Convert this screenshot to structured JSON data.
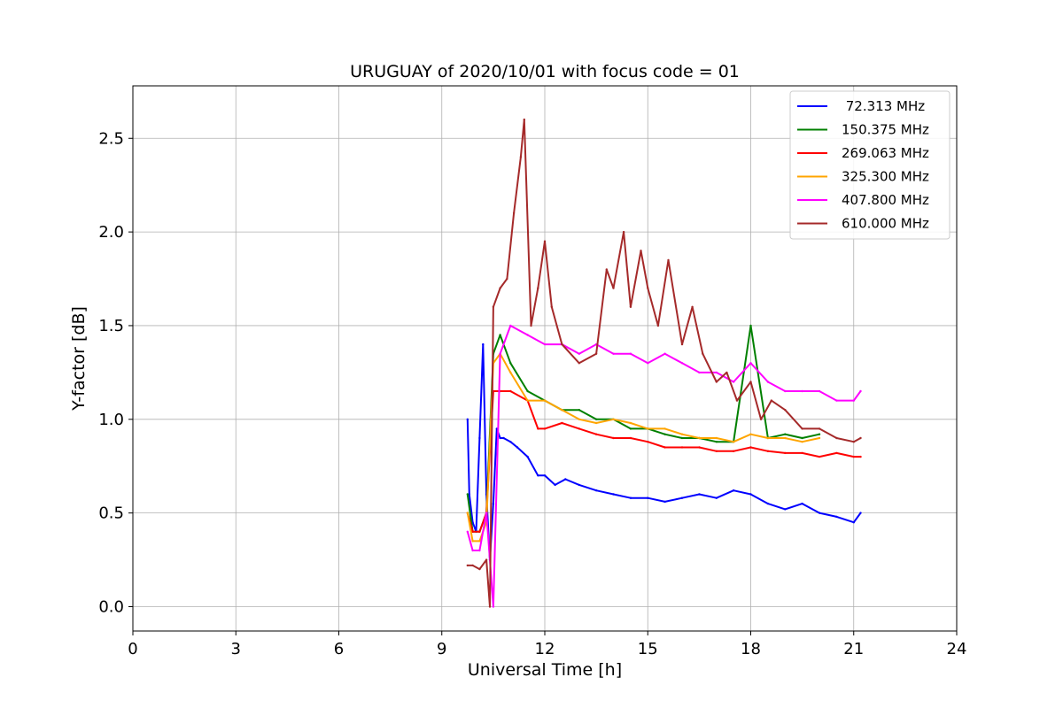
{
  "chart_data": {
    "type": "line",
    "title": "URUGUAY of 2020/10/01 with focus code = 01",
    "xlabel": "Universal Time [h]",
    "ylabel": "Y-factor [dB]",
    "xlim": [
      0,
      24
    ],
    "ylim": [
      -0.13,
      2.78
    ],
    "xticks": [
      0,
      3,
      6,
      9,
      12,
      15,
      18,
      21,
      24
    ],
    "xtick_labels": [
      "0",
      "3",
      "6",
      "9",
      "12",
      "15",
      "18",
      "21",
      "24"
    ],
    "yticks": [
      0.0,
      0.5,
      1.0,
      1.5,
      2.0,
      2.5
    ],
    "ytick_labels": [
      "0.0",
      "0.5",
      "1.0",
      "1.5",
      "2.0",
      "2.5"
    ],
    "grid": true,
    "legend_position": "top-right",
    "series": [
      {
        "name": " 72.313 MHz",
        "color": "#0000ff",
        "x": [
          9.75,
          9.8,
          9.9,
          10.0,
          10.1,
          10.2,
          10.3,
          10.4,
          10.5,
          10.6,
          10.7,
          10.8,
          11.0,
          11.2,
          11.5,
          11.8,
          12.0,
          12.3,
          12.6,
          13.0,
          13.5,
          14.0,
          14.5,
          15.0,
          15.5,
          16.0,
          16.5,
          17.0,
          17.5,
          18.0,
          18.5,
          19.0,
          19.5,
          20.0,
          20.5,
          21.0,
          21.2
        ],
        "values": [
          1.0,
          0.6,
          0.45,
          0.4,
          0.9,
          1.4,
          0.6,
          0.25,
          0.55,
          0.95,
          0.9,
          0.9,
          0.88,
          0.85,
          0.8,
          0.7,
          0.7,
          0.65,
          0.68,
          0.65,
          0.62,
          0.6,
          0.58,
          0.58,
          0.56,
          0.58,
          0.6,
          0.58,
          0.62,
          0.6,
          0.55,
          0.52,
          0.55,
          0.5,
          0.48,
          0.45,
          0.5
        ]
      },
      {
        "name": "150.375 MHz",
        "color": "#008000",
        "x": [
          9.75,
          9.9,
          10.1,
          10.3,
          10.5,
          10.7,
          11.0,
          11.5,
          12.0,
          12.5,
          13.0,
          13.5,
          14.0,
          14.5,
          15.0,
          15.5,
          16.0,
          16.5,
          17.0,
          17.5,
          18.0,
          18.5,
          19.0,
          19.5,
          20.0
        ],
        "values": [
          0.6,
          0.4,
          0.4,
          0.5,
          1.35,
          1.45,
          1.3,
          1.15,
          1.1,
          1.05,
          1.05,
          1.0,
          1.0,
          0.95,
          0.95,
          0.92,
          0.9,
          0.9,
          0.88,
          0.88,
          1.5,
          0.9,
          0.92,
          0.9,
          0.92
        ]
      },
      {
        "name": "269.063 MHz",
        "color": "#ff0000",
        "x": [
          9.75,
          9.9,
          10.1,
          10.3,
          10.5,
          10.7,
          11.0,
          11.5,
          11.8,
          12.0,
          12.5,
          13.0,
          13.5,
          14.0,
          14.5,
          15.0,
          15.5,
          16.0,
          16.5,
          17.0,
          17.5,
          18.0,
          18.5,
          19.0,
          19.5,
          20.0,
          20.5,
          21.0,
          21.2
        ],
        "values": [
          0.5,
          0.4,
          0.4,
          0.5,
          1.15,
          1.15,
          1.15,
          1.1,
          0.95,
          0.95,
          0.98,
          0.95,
          0.92,
          0.9,
          0.9,
          0.88,
          0.85,
          0.85,
          0.85,
          0.83,
          0.83,
          0.85,
          0.83,
          0.82,
          0.82,
          0.8,
          0.82,
          0.8,
          0.8
        ]
      },
      {
        "name": "325.300 MHz",
        "color": "#ffa500",
        "x": [
          9.75,
          9.9,
          10.1,
          10.3,
          10.5,
          10.7,
          11.0,
          11.5,
          12.0,
          12.5,
          13.0,
          13.5,
          14.0,
          14.5,
          15.0,
          15.5,
          16.0,
          16.5,
          17.0,
          17.5,
          18.0,
          18.5,
          19.0,
          19.5,
          20.0
        ],
        "values": [
          0.5,
          0.35,
          0.35,
          0.45,
          1.3,
          1.35,
          1.25,
          1.1,
          1.1,
          1.05,
          1.0,
          0.98,
          1.0,
          0.98,
          0.95,
          0.95,
          0.92,
          0.9,
          0.9,
          0.88,
          0.92,
          0.9,
          0.9,
          0.88,
          0.9
        ]
      },
      {
        "name": "407.800 MHz",
        "color": "#ff00ff",
        "x": [
          9.75,
          9.9,
          10.1,
          10.3,
          10.5,
          10.7,
          11.0,
          11.5,
          12.0,
          12.5,
          13.0,
          13.5,
          14.0,
          14.5,
          15.0,
          15.5,
          16.0,
          16.5,
          17.0,
          17.5,
          18.0,
          18.5,
          19.0,
          19.5,
          20.0,
          20.5,
          21.0,
          21.2
        ],
        "values": [
          0.4,
          0.3,
          0.3,
          0.5,
          0.0,
          1.35,
          1.5,
          1.45,
          1.4,
          1.4,
          1.35,
          1.4,
          1.35,
          1.35,
          1.3,
          1.35,
          1.3,
          1.25,
          1.25,
          1.2,
          1.3,
          1.2,
          1.15,
          1.15,
          1.15,
          1.1,
          1.1,
          1.15
        ]
      },
      {
        "name": "610.000 MHz",
        "color": "#a52a2a",
        "x": [
          9.75,
          9.9,
          10.1,
          10.3,
          10.4,
          10.5,
          10.7,
          10.9,
          11.1,
          11.3,
          11.4,
          11.6,
          11.8,
          12.0,
          12.2,
          12.5,
          13.0,
          13.5,
          13.8,
          14.0,
          14.3,
          14.5,
          14.8,
          15.0,
          15.3,
          15.6,
          16.0,
          16.3,
          16.6,
          17.0,
          17.3,
          17.6,
          18.0,
          18.3,
          18.6,
          19.0,
          19.5,
          20.0,
          20.5,
          21.0,
          21.2
        ],
        "values": [
          0.22,
          0.22,
          0.2,
          0.25,
          0.0,
          1.6,
          1.7,
          1.75,
          2.1,
          2.4,
          2.6,
          1.5,
          1.7,
          1.95,
          1.6,
          1.4,
          1.3,
          1.35,
          1.8,
          1.7,
          2.0,
          1.6,
          1.9,
          1.7,
          1.5,
          1.85,
          1.4,
          1.6,
          1.35,
          1.2,
          1.25,
          1.1,
          1.2,
          1.0,
          1.1,
          1.05,
          0.95,
          0.95,
          0.9,
          0.88,
          0.9
        ]
      }
    ]
  }
}
